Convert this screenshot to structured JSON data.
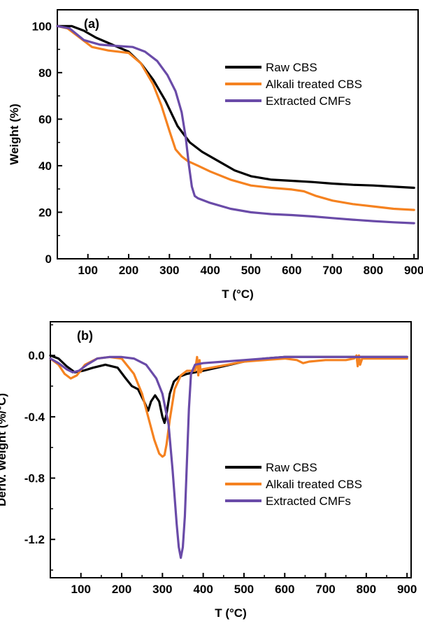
{
  "chart_data": [
    {
      "type": "line",
      "panel_label": "(a)",
      "xlabel": "T (°C)",
      "ylabel": "Weight (%)",
      "xlim": [
        25,
        910
      ],
      "ylim": [
        0,
        107
      ],
      "xticks": [
        100,
        200,
        300,
        400,
        500,
        600,
        700,
        800,
        900
      ],
      "yticks": [
        0,
        20,
        40,
        60,
        80,
        100
      ],
      "legend_position": "center-right",
      "series": [
        {
          "name": "Raw CBS",
          "color": "#000000",
          "x": [
            25,
            60,
            90,
            120,
            160,
            200,
            230,
            260,
            290,
            320,
            350,
            380,
            420,
            460,
            500,
            550,
            600,
            650,
            700,
            750,
            800,
            850,
            900
          ],
          "y": [
            100,
            100,
            98,
            95,
            92,
            89,
            84,
            77,
            68,
            57,
            50,
            46,
            42,
            38,
            35.5,
            34,
            33.5,
            33,
            32.3,
            31.8,
            31.5,
            31,
            30.5
          ]
        },
        {
          "name": "Alkali treated CBS",
          "color": "#f58220",
          "x": [
            25,
            50,
            80,
            110,
            150,
            200,
            230,
            260,
            280,
            300,
            315,
            330,
            345,
            370,
            400,
            450,
            500,
            550,
            600,
            630,
            660,
            700,
            750,
            800,
            850,
            900
          ],
          "y": [
            100,
            99,
            95,
            91,
            89.5,
            88.5,
            84,
            75,
            66,
            55,
            47,
            44,
            42,
            40,
            37.5,
            34,
            31.5,
            30.5,
            29.8,
            29,
            27,
            25,
            23.5,
            22.5,
            21.5,
            21
          ]
        },
        {
          "name": "Extracted CMFs",
          "color": "#6a4ba8",
          "x": [
            25,
            55,
            90,
            130,
            170,
            210,
            240,
            270,
            295,
            315,
            330,
            340,
            348,
            355,
            362,
            370,
            400,
            450,
            500,
            550,
            600,
            650,
            700,
            750,
            800,
            850,
            900
          ],
          "y": [
            100,
            99,
            94,
            92,
            91.5,
            91,
            89,
            85,
            79,
            72,
            63,
            52,
            40,
            31,
            27,
            26,
            24,
            21.5,
            20,
            19.2,
            18.8,
            18.2,
            17.5,
            16.8,
            16.2,
            15.7,
            15.3
          ]
        }
      ]
    },
    {
      "type": "line",
      "panel_label": "(b)",
      "xlabel": "T (°C)",
      "ylabel": "Deriv. Weight (%/°C)",
      "xlim": [
        25,
        910
      ],
      "ylim": [
        -1.45,
        0.22
      ],
      "xticks": [
        100,
        200,
        300,
        400,
        500,
        600,
        700,
        800,
        900
      ],
      "yticks": [
        0.0,
        -0.4,
        -0.8,
        -1.2
      ],
      "ytick_labels": [
        "0.0",
        "-0.4",
        "-0.8",
        "-1.2"
      ],
      "legend_position": "lower-right",
      "series": [
        {
          "name": "Raw CBS",
          "color": "#000000",
          "x": [
            25,
            45,
            65,
            85,
            105,
            130,
            160,
            190,
            210,
            225,
            240,
            255,
            265,
            272,
            282,
            292,
            300,
            305,
            310,
            318,
            328,
            340,
            360,
            400,
            450,
            500,
            550,
            600,
            650,
            700,
            750,
            800,
            850,
            900
          ],
          "y": [
            0.0,
            -0.02,
            -0.07,
            -0.11,
            -0.1,
            -0.08,
            -0.06,
            -0.08,
            -0.15,
            -0.2,
            -0.22,
            -0.3,
            -0.36,
            -0.3,
            -0.26,
            -0.3,
            -0.4,
            -0.44,
            -0.38,
            -0.25,
            -0.17,
            -0.14,
            -0.12,
            -0.1,
            -0.07,
            -0.04,
            -0.02,
            -0.01,
            -0.01,
            -0.01,
            -0.01,
            -0.01,
            -0.01,
            -0.01
          ]
        },
        {
          "name": "Alkali treated CBS",
          "color": "#f58220",
          "x": [
            25,
            45,
            60,
            75,
            90,
            110,
            140,
            170,
            200,
            230,
            250,
            265,
            280,
            292,
            300,
            305,
            310,
            318,
            330,
            345,
            360,
            380,
            385,
            388,
            391,
            394,
            398,
            420,
            460,
            500,
            550,
            600,
            630,
            645,
            660,
            700,
            750,
            770,
            776,
            779,
            782,
            785,
            790,
            850,
            900
          ],
          "y": [
            -0.02,
            -0.06,
            -0.12,
            -0.15,
            -0.13,
            -0.06,
            -0.02,
            -0.01,
            -0.02,
            -0.12,
            -0.25,
            -0.4,
            -0.55,
            -0.64,
            -0.66,
            -0.65,
            -0.58,
            -0.42,
            -0.22,
            -0.13,
            -0.1,
            -0.1,
            -0.01,
            -0.13,
            -0.03,
            -0.11,
            -0.09,
            -0.08,
            -0.06,
            -0.04,
            -0.03,
            -0.02,
            -0.03,
            -0.05,
            -0.04,
            -0.03,
            -0.03,
            -0.02,
            0.0,
            -0.07,
            0.0,
            -0.06,
            -0.02,
            -0.02,
            -0.02
          ]
        },
        {
          "name": "Extracted CMFs",
          "color": "#6a4ba8",
          "x": [
            25,
            45,
            65,
            80,
            95,
            115,
            140,
            170,
            200,
            230,
            260,
            285,
            300,
            315,
            325,
            335,
            340,
            345,
            350,
            355,
            360,
            365,
            370,
            380,
            400,
            450,
            500,
            550,
            600,
            700,
            800,
            900
          ],
          "y": [
            -0.02,
            -0.05,
            -0.09,
            -0.11,
            -0.1,
            -0.06,
            -0.02,
            -0.01,
            -0.01,
            -0.02,
            -0.06,
            -0.15,
            -0.25,
            -0.45,
            -0.75,
            -1.1,
            -1.25,
            -1.32,
            -1.25,
            -1.05,
            -0.7,
            -0.35,
            -0.12,
            -0.06,
            -0.05,
            -0.04,
            -0.03,
            -0.02,
            -0.01,
            -0.01,
            -0.01,
            -0.01
          ]
        }
      ]
    }
  ]
}
